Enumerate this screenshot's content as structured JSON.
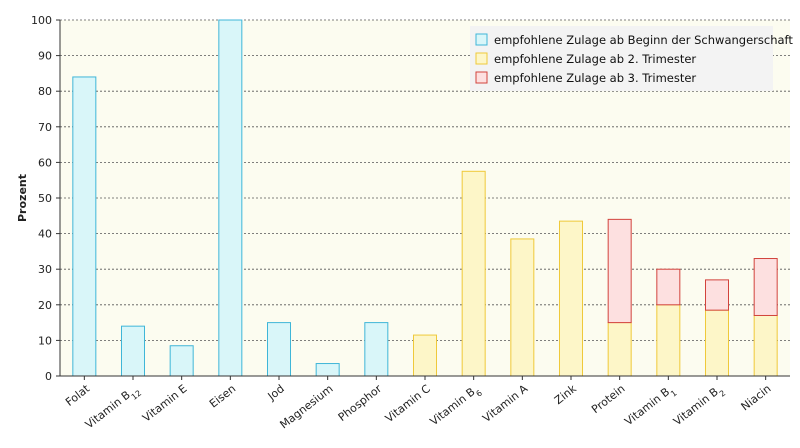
{
  "chart_data": {
    "type": "bar",
    "ylabel": "Prozent",
    "ylim": [
      0,
      100
    ],
    "yticks": [
      0,
      10,
      20,
      30,
      40,
      50,
      60,
      70,
      80,
      90,
      100
    ],
    "grid": true,
    "legend_position": "top-right",
    "categories": [
      {
        "name": "Folat",
        "sub": ""
      },
      {
        "name": "Vitamin B",
        "sub": "12"
      },
      {
        "name": "Vitamin E",
        "sub": ""
      },
      {
        "name": "Eisen",
        "sub": ""
      },
      {
        "name": "Jod",
        "sub": ""
      },
      {
        "name": "Magnesium",
        "sub": ""
      },
      {
        "name": "Phosphor",
        "sub": ""
      },
      {
        "name": "Vitamin C",
        "sub": ""
      },
      {
        "name": "Vitamin B",
        "sub": "6"
      },
      {
        "name": "Vitamin A",
        "sub": ""
      },
      {
        "name": "Zink",
        "sub": ""
      },
      {
        "name": "Protein",
        "sub": ""
      },
      {
        "name": "Vitamin B",
        "sub": "1"
      },
      {
        "name": "Vitamin B",
        "sub": "2"
      },
      {
        "name": "Niacin",
        "sub": ""
      }
    ],
    "series": [
      {
        "name": "empfohlene Zulage ab Beginn der Schwangerschaft",
        "fill": "#d9f6f9",
        "stroke": "#3fb6d8",
        "values": [
          84,
          14,
          8.5,
          100,
          15,
          3.5,
          15,
          0,
          0,
          0,
          0,
          0,
          0,
          0,
          0
        ]
      },
      {
        "name": "empfohlene Zulage ab 2. Trimester",
        "fill": "#fdf6c8",
        "stroke": "#efc93a",
        "values": [
          0,
          0,
          0,
          0,
          0,
          0,
          0,
          11.5,
          57.5,
          38.5,
          43.5,
          15,
          20,
          18.5,
          17
        ]
      },
      {
        "name": "empfohlene Zulage ab 3. Trimester",
        "fill": "#fde0e0",
        "stroke": "#d2433c",
        "values": [
          0,
          0,
          0,
          0,
          0,
          0,
          0,
          0,
          0,
          0,
          0,
          29,
          10,
          8.5,
          16
        ]
      }
    ],
    "plot_background": "#fcfcf0"
  }
}
